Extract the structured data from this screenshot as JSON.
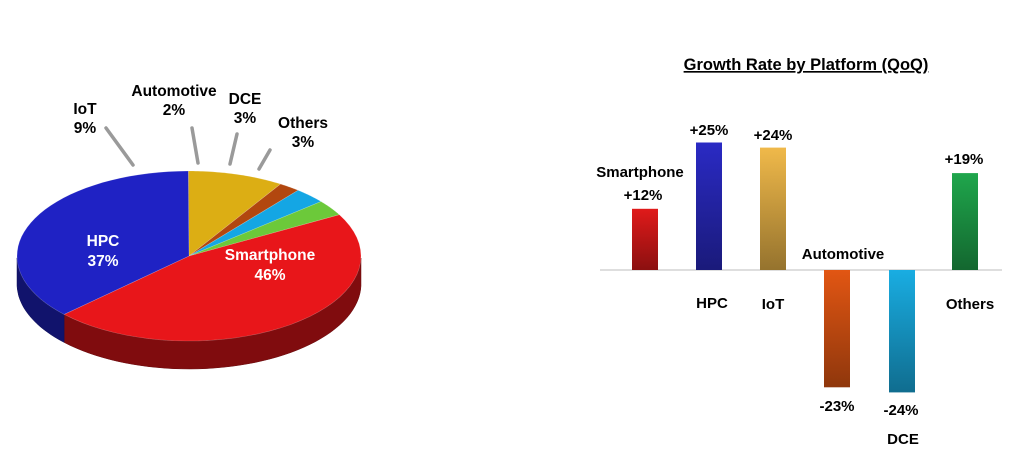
{
  "chart_data": [
    {
      "type": "pie",
      "title": "",
      "slices": [
        {
          "label": "Smartphone",
          "value": 46,
          "value_label": "46%",
          "color": "#e8161a"
        },
        {
          "label": "HPC",
          "value": 37,
          "value_label": "37%",
          "color": "#1f22c4"
        },
        {
          "label": "IoT",
          "value": 9,
          "value_label": "9%",
          "color": "#dcae14"
        },
        {
          "label": "Automotive",
          "value": 2,
          "value_label": "2%",
          "color": "#b2470f"
        },
        {
          "label": "DCE",
          "value": 3,
          "value_label": "3%",
          "color": "#14a6e4"
        },
        {
          "label": "Others",
          "value": 3,
          "value_label": "3%",
          "color": "#6cc93a"
        }
      ]
    },
    {
      "type": "bar",
      "title": "Growth Rate by Platform (QoQ)",
      "categories": [
        "Smartphone",
        "HPC",
        "IoT",
        "Automotive",
        "DCE",
        "Others"
      ],
      "values": [
        12,
        25,
        24,
        -23,
        -24,
        19
      ],
      "value_labels": [
        "+12%",
        "+25%",
        "+24%",
        "-23%",
        "-24%",
        "+19%"
      ],
      "colors": [
        "#e01a1a",
        "#2a2ac4",
        "#f0b94a",
        "#ee5b14",
        "#1ab6ee",
        "#1fa64c"
      ],
      "ylim": [
        -25,
        25
      ],
      "grid": false,
      "legend": "none"
    }
  ]
}
